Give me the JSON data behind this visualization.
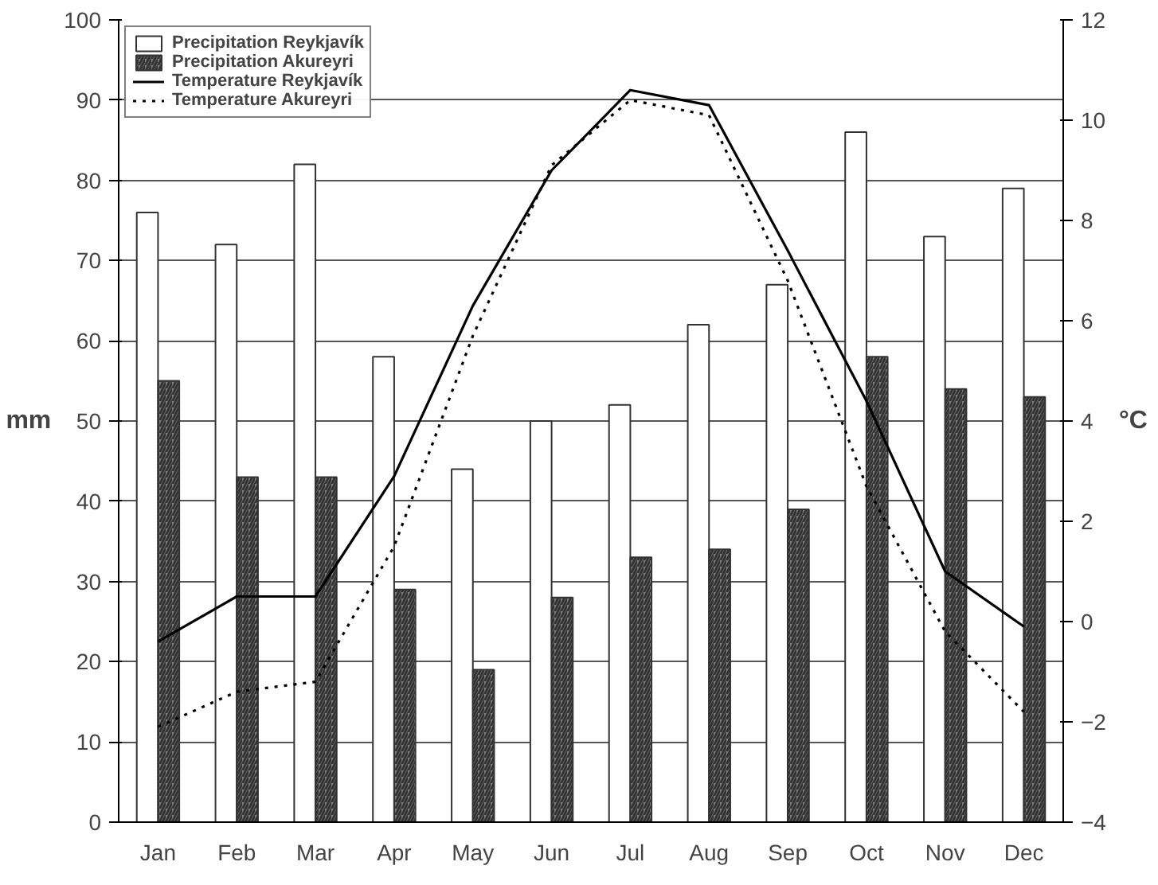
{
  "chart_data": {
    "type": "bar",
    "categories": [
      "Jan",
      "Feb",
      "Mar",
      "Apr",
      "May",
      "Jun",
      "Jul",
      "Aug",
      "Sep",
      "Oct",
      "Nov",
      "Dec"
    ],
    "ylabel": "mm",
    "y2label": "°C",
    "ylim": [
      0,
      100
    ],
    "yticks": [
      0,
      10,
      20,
      30,
      40,
      50,
      60,
      70,
      80,
      90,
      100
    ],
    "y2lim": [
      -4,
      12
    ],
    "y2ticks": [
      -4,
      -2,
      0,
      2,
      4,
      6,
      8,
      10,
      12
    ],
    "grid": "y",
    "legend": "top left",
    "series": [
      {
        "name": "Precipitation Reykjavík",
        "color": "#ffffff",
        "values": [
          76,
          72,
          82,
          58,
          44,
          50,
          52,
          62,
          67,
          86,
          73,
          79
        ]
      },
      {
        "name": "Precipitation Akureyri",
        "color": "#808080",
        "values": [
          55,
          43,
          43,
          29,
          19,
          28,
          33,
          34,
          39,
          58,
          54,
          53
        ]
      },
      {
        "name": "Temperature Reykjavík",
        "type": "line",
        "axis": "y2",
        "color": "#000000",
        "line_style": "solid",
        "values": [
          -0.4,
          0.5,
          0.5,
          2.9,
          6.3,
          9.0,
          10.6,
          10.3,
          7.4,
          4.4,
          1.0,
          -0.1
        ]
      },
      {
        "name": "Temperature Akureyri",
        "type": "line",
        "axis": "y2",
        "color": "#000000",
        "line_style": "dotted",
        "values": [
          -2.1,
          -1.4,
          -1.2,
          1.5,
          5.7,
          9.1,
          10.4,
          10.1,
          6.8,
          2.7,
          -0.2,
          -1.8
        ]
      }
    ]
  }
}
